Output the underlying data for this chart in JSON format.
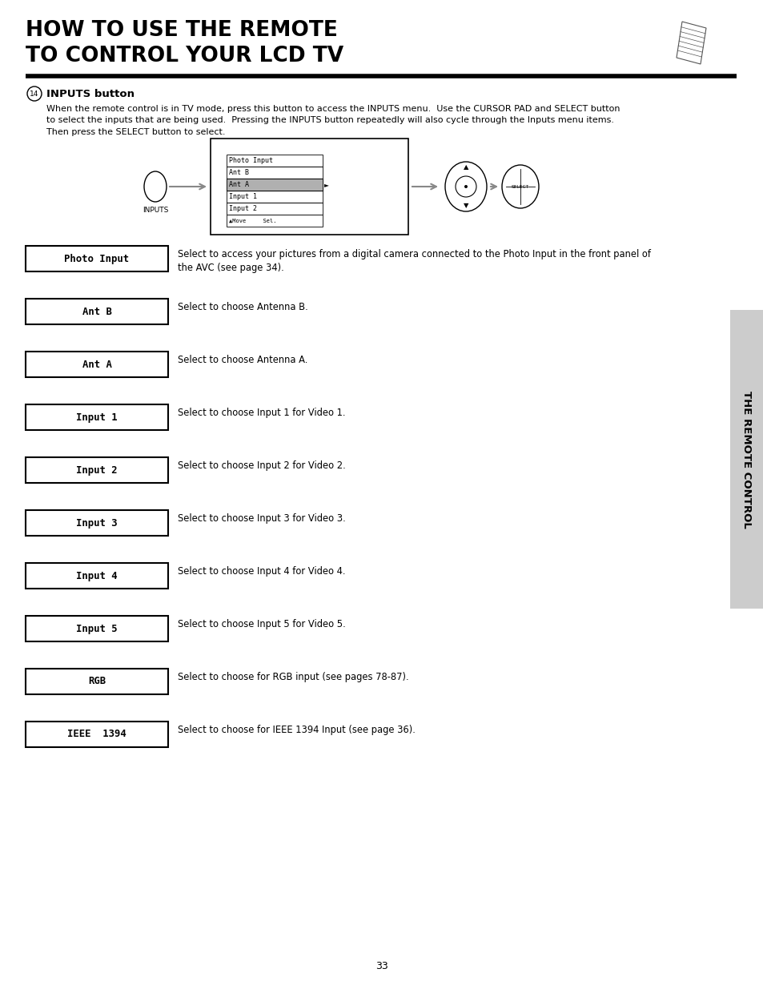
{
  "title_line1": "HOW TO USE THE REMOTE",
  "title_line2": "TO CONTROL YOUR LCD TV",
  "title_fontsize": 19,
  "section_num": "14",
  "section_title": "INPUTS button",
  "section_desc": "When the remote control is in TV mode, press this button to access the INPUTS menu.  Use the CURSOR PAD and SELECT button\nto select the inputs that are being used.  Pressing the INPUTS button repeatedly will also cycle through the Inputs menu items.\nThen press the SELECT button to select.",
  "menu_items": [
    "Photo Input",
    "Ant B",
    "Ant A",
    "Input 1",
    "Input 2"
  ],
  "menu_selected": 2,
  "menu_bottom_text": "▲Move     Sel.",
  "inputs_label": "INPUTS",
  "items": [
    {
      "label": "Photo Input",
      "desc": "Select to access your pictures from a digital camera connected to the Photo Input in the front panel of\nthe AVC (see page 34)."
    },
    {
      "label": "Ant B",
      "desc": "Select to choose Antenna B."
    },
    {
      "label": "Ant A",
      "desc": "Select to choose Antenna A."
    },
    {
      "label": "Input 1",
      "desc": "Select to choose Input 1 for Video 1."
    },
    {
      "label": "Input 2",
      "desc": "Select to choose Input 2 for Video 2."
    },
    {
      "label": "Input 3",
      "desc": "Select to choose Input 3 for Video 3."
    },
    {
      "label": "Input 4",
      "desc": "Select to choose Input 4 for Video 4."
    },
    {
      "label": "Input 5",
      "desc": "Select to choose Input 5 for Video 5."
    },
    {
      "label": "RGB",
      "desc": "Select to choose for RGB input (see pages 78-87)."
    },
    {
      "label": "IEEE  1394",
      "desc": "Select to choose for IEEE 1394 Input (see page 36)."
    }
  ],
  "page_number": "33",
  "sidebar_text": "THE REMOTE CONTROL",
  "bg_color": "#ffffff",
  "text_color": "#000000",
  "box_fill": "#ffffff",
  "selected_fill": "#b0b0b0",
  "sidebar_fill": "#cccccc"
}
